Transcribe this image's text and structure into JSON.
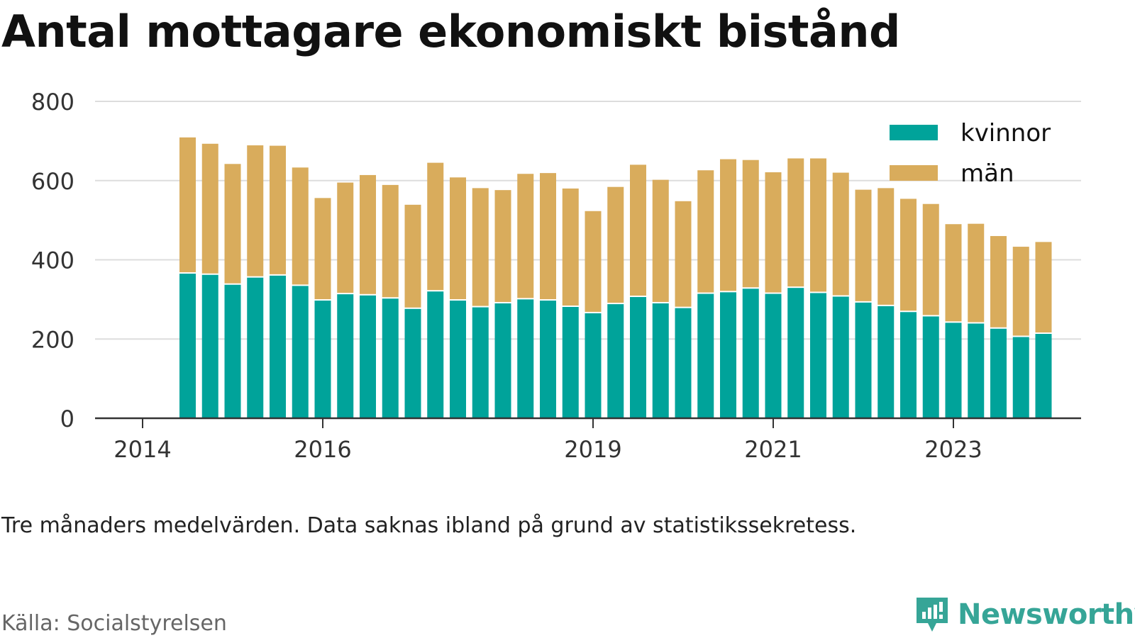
{
  "title": "Antal mottagare ekonomiskt bistånd",
  "subtitle": "Tre månaders medelvärden. Data saknas ibland på grund av statistikssekretess.",
  "source": "Källa: Socialstyrelsen",
  "brand": "Newsworthy",
  "colors": {
    "kvinnor": "#00a39a",
    "man": "#d9ac5c",
    "brand": "#36a597",
    "grid": "#dddddd",
    "axis": "#333333"
  },
  "chart_data": {
    "type": "bar",
    "stacked": true,
    "x": [
      "2014-07",
      "2014-10",
      "2015-01",
      "2015-04",
      "2015-07",
      "2015-10",
      "2016-01",
      "2016-04",
      "2016-07",
      "2016-10",
      "2017-01",
      "2017-04",
      "2017-07",
      "2017-10",
      "2018-01",
      "2018-04",
      "2018-07",
      "2018-10",
      "2019-01",
      "2019-04",
      "2019-07",
      "2019-10",
      "2020-01",
      "2020-04",
      "2020-07",
      "2020-10",
      "2021-01",
      "2021-04",
      "2021-07",
      "2021-10",
      "2022-01",
      "2022-04",
      "2022-07",
      "2022-10",
      "2023-01",
      "2023-04",
      "2023-07",
      "2023-10",
      "2024-01"
    ],
    "series": [
      {
        "name": "kvinnor",
        "values": [
          365,
          362,
          337,
          355,
          360,
          334,
          297,
          313,
          310,
          302,
          276,
          320,
          297,
          280,
          290,
          300,
          297,
          281,
          265,
          288,
          306,
          290,
          278,
          314,
          318,
          327,
          314,
          329,
          316,
          307,
          292,
          283,
          268,
          257,
          241,
          239,
          226,
          205,
          213
        ]
      },
      {
        "name": "män",
        "values": [
          344,
          331,
          305,
          334,
          328,
          299,
          259,
          282,
          304,
          287,
          263,
          325,
          311,
          301,
          286,
          317,
          322,
          299,
          258,
          296,
          334,
          312,
          270,
          312,
          336,
          325,
          307,
          327,
          340,
          313,
          285,
          298,
          286,
          284,
          249,
          252,
          234,
          228,
          232
        ]
      }
    ],
    "xticks": [
      "2014",
      "2016",
      "2019",
      "2021",
      "2023"
    ],
    "yticks": [
      0,
      200,
      400,
      600,
      800
    ],
    "ylim": [
      0,
      800
    ],
    "legend": [
      "kvinnor",
      "män"
    ],
    "legend_position": "top-right",
    "grid": true
  }
}
